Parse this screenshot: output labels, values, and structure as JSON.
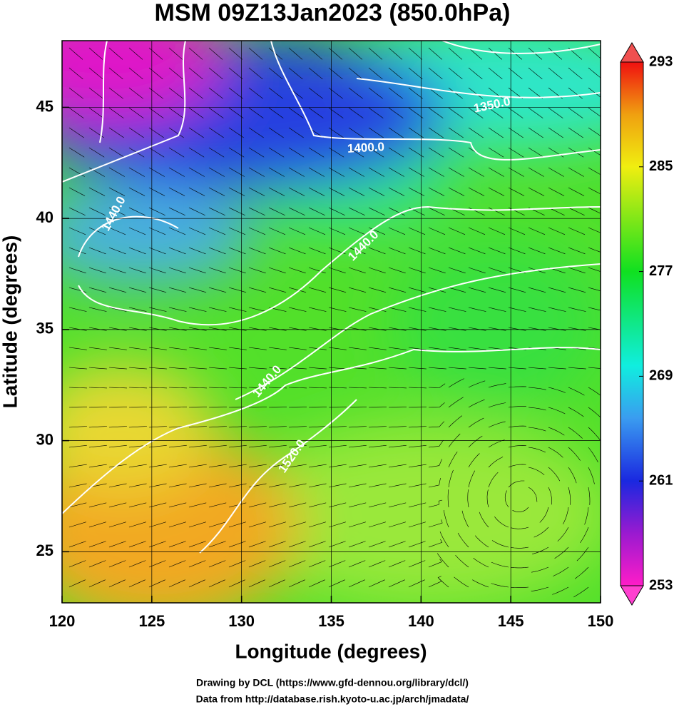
{
  "map": {
    "title": "MSM 09Z13Jan2023 (850.0hPa)",
    "x_label": "Longitude (degrees)",
    "y_label": "Latitude  (degrees)",
    "xlim": [
      120,
      150
    ],
    "ylim": [
      22.7,
      48
    ],
    "xticks": [
      120,
      125,
      130,
      135,
      140,
      145,
      150
    ],
    "yticks": [
      25,
      30,
      35,
      40,
      45
    ],
    "colorbar": {
      "lim": [
        253,
        293
      ],
      "ticks": [
        253,
        261,
        269,
        277,
        285,
        293
      ]
    },
    "contour_labels": [
      "1350.0",
      "1400.0",
      "1440.0",
      "1440.0",
      "1440.0",
      "1520.0"
    ],
    "credits": [
      "Drawing by DCL (https://www.gfd-dennou.org/library/dcl/)",
      "Data from http://database.rish.kyoto-u.ac.jp/arch/jmadata/"
    ]
  }
}
